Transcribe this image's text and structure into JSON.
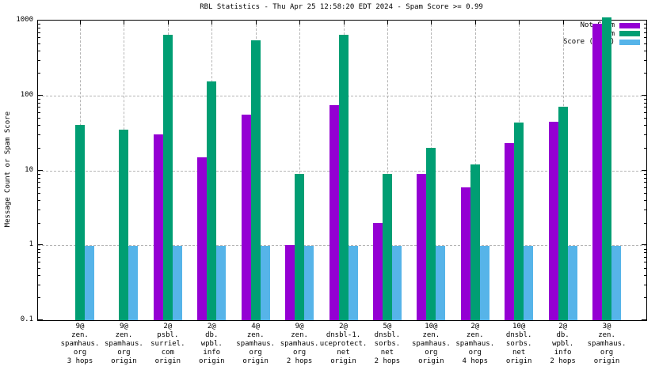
{
  "title": "RBL Statistics - Thu Apr 25 12:58:20 EDT 2024 - Spam Score >= 0.99",
  "ylabel": "Message Count or Spam Score",
  "legend": [
    {
      "label": "Not Spam",
      "color": "#9400d3"
    },
    {
      "label": "Spam",
      "color": "#009e73"
    },
    {
      "label": "Score (0..1)",
      "color": "#56b4e9"
    }
  ],
  "colors": {
    "not_spam": "#9400d3",
    "spam": "#009e73",
    "score": "#56b4e9",
    "grid": "#b5b5b5",
    "axis": "#000000",
    "background": "#ffffff"
  },
  "chart_data": {
    "type": "bar",
    "scale": "log",
    "title": "RBL Statistics - Thu Apr 25 12:58:20 EDT 2024 - Spam Score >= 0.99",
    "xlabel": "",
    "ylabel": "Message Count or Spam Score",
    "ylim": [
      0.1,
      1000
    ],
    "grid": true,
    "legend_position": "top-right",
    "yticks": {
      "values": [
        0.1,
        1,
        10,
        100,
        1000
      ],
      "labels": [
        "0.1",
        "1",
        "10",
        "100",
        "1000"
      ]
    },
    "categories": [
      [
        "9@",
        "zen.",
        "spamhaus.",
        "org",
        "3 hops"
      ],
      [
        "9@",
        "zen.",
        "spamhaus.",
        "org",
        "origin"
      ],
      [
        "2@",
        "psbl.",
        "surriel.",
        "com",
        "origin"
      ],
      [
        "2@",
        "db.",
        "wpbl.",
        "info",
        "origin"
      ],
      [
        "4@",
        "zen.",
        "spamhaus.",
        "org",
        "origin"
      ],
      [
        "9@",
        "zen.",
        "spamhaus.",
        "org",
        "2 hops"
      ],
      [
        "2@",
        "dnsbl-1.",
        "uceprotect.",
        "net",
        "origin"
      ],
      [
        "5@",
        "dnsbl.",
        "sorbs.",
        "net",
        "2 hops"
      ],
      [
        "10@",
        "zen.",
        "spamhaus.",
        "org",
        "origin"
      ],
      [
        "2@",
        "zen.",
        "spamhaus.",
        "org",
        "4 hops"
      ],
      [
        "10@",
        "dnsbl.",
        "sorbs.",
        "net",
        "origin"
      ],
      [
        "2@",
        "db.",
        "wpbl.",
        "info",
        "2 hops"
      ],
      [
        "3@",
        "zen.",
        "spamhaus.",
        "org",
        "origin"
      ]
    ],
    "series": [
      {
        "name": "Not Spam",
        "key": "not-spam",
        "color": "#9400d3",
        "values": [
          null,
          null,
          30,
          15,
          55,
          1,
          74,
          2,
          9,
          6,
          23,
          45,
          900
        ]
      },
      {
        "name": "Spam",
        "key": "spam",
        "color": "#009e73",
        "values": [
          40,
          35,
          650,
          155,
          550,
          9,
          640,
          9,
          20,
          12,
          44,
          70,
          1100
        ]
      },
      {
        "name": "Score (0..1)",
        "key": "score",
        "color": "#56b4e9",
        "values": [
          0.99,
          0.99,
          0.99,
          0.99,
          0.99,
          0.99,
          0.99,
          0.99,
          0.99,
          0.99,
          0.99,
          0.99,
          0.99
        ]
      }
    ]
  }
}
